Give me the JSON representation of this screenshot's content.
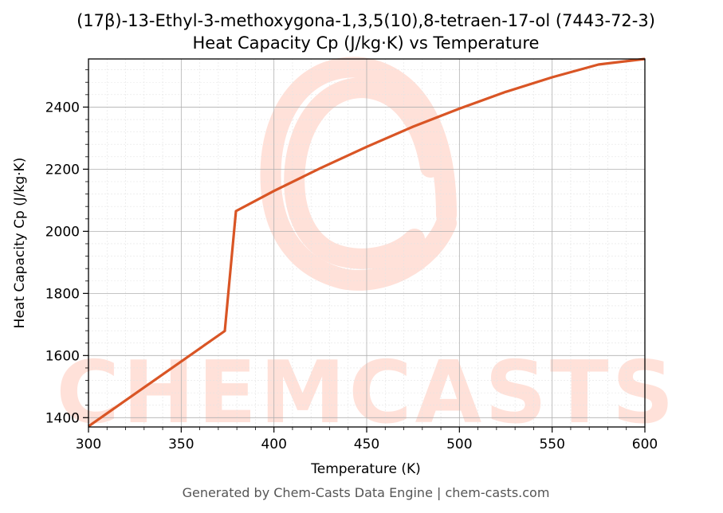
{
  "chart_data": {
    "type": "line",
    "title_line1": "(17β)-13-Ethyl-3-methoxygona-1,3,5(10),8-tetraen-17-ol (7443-72-3)",
    "title_line2": "Heat Capacity Cp (J/kg·K) vs Temperature",
    "xlabel": "Temperature (K)",
    "ylabel": "Heat Capacity Cp (J/kg·K)",
    "xlim": [
      300,
      600
    ],
    "ylim": [
      1370,
      2555
    ],
    "xticks": [
      "300",
      "350",
      "400",
      "450",
      "500",
      "550",
      "600"
    ],
    "yticks": [
      "1400",
      "1600",
      "1800",
      "2000",
      "2200",
      "2400"
    ],
    "grid": true,
    "line_color": "#d95525",
    "series": [
      {
        "x": [
          300,
          373.5,
          379.5,
          400,
          425,
          450,
          475,
          500,
          525,
          550,
          575,
          600
        ],
        "values": [
          1372,
          1679,
          2065,
          2130,
          2203,
          2272,
          2337,
          2395,
          2449,
          2496,
          2537,
          2555
        ]
      }
    ]
  },
  "watermark": {
    "text": "CHEMCASTS",
    "color": "#ffe1d9"
  },
  "footer": "Generated by Chem-Casts Data Engine | chem-casts.com"
}
